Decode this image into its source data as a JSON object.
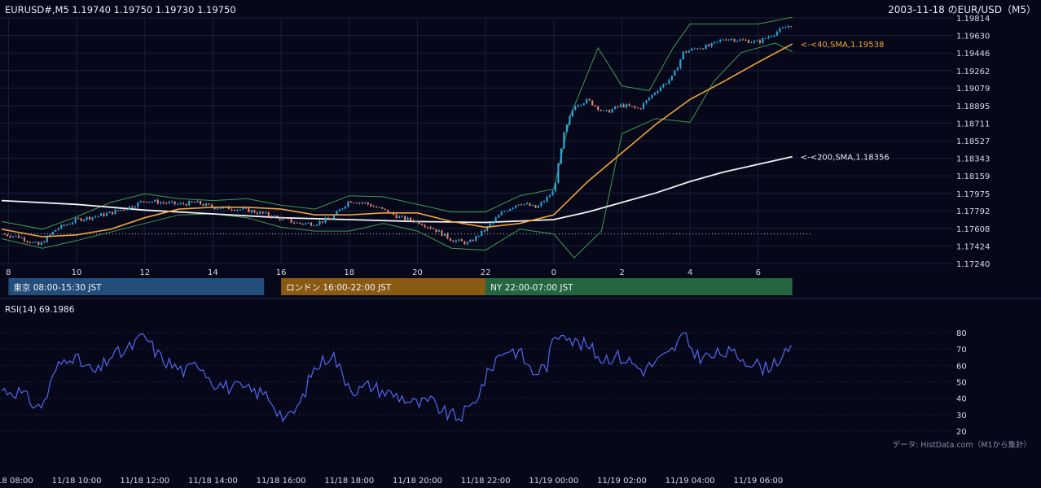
{
  "header": {
    "symbol_ohlc": "EURUSD#,M5 1.19740 1.19750 1.19730 1.19750",
    "title": "2003-11-18 のEUR/USD（M5）"
  },
  "colors": {
    "background": "#06081a",
    "grid": "#1b1e36",
    "bull": "#2aa8e0",
    "bear": "#e8856a",
    "sma40": "#f2a33a",
    "sma200": "#f2f2f2",
    "bollinger": "#3d9a52",
    "rsi": "#5566ee",
    "tokyo": "#234d7a",
    "london": "#8a5a12",
    "ny": "#246640"
  },
  "sessions": [
    {
      "label": "東京 08:00-15:30 JST",
      "start_hour": 8.0,
      "end_hour": 15.5,
      "color": "#234d7a"
    },
    {
      "label": "ロンドン 16:00-22:00 JST",
      "start_hour": 16.0,
      "end_hour": 22.0,
      "color": "#8a5a12"
    },
    {
      "label": "NY 22:00-07:00 JST",
      "start_hour": 22.0,
      "end_hour": 31.0,
      "color": "#246640"
    }
  ],
  "footer_note": "データ: HistData.com（M1から集計）",
  "chart_data": [
    {
      "type": "candlestick",
      "title": "2003-11-18 のEUR/USD（M5）",
      "x_unit": "hours since 2003-11-18 00:00 JST",
      "xlim": [
        7.8,
        31.7
      ],
      "ylim": [
        1.1724,
        1.19814
      ],
      "y_ticks": [
        "1.19814",
        "1.19630",
        "1.19446",
        "1.19262",
        "1.19079",
        "1.18895",
        "1.18711",
        "1.18527",
        "1.18343",
        "1.18159",
        "1.17975",
        "1.17792",
        "1.17608",
        "1.17424",
        "1.17240"
      ],
      "x_ticks": [
        {
          "hour": 8,
          "label": "8"
        },
        {
          "hour": 10,
          "label": "10"
        },
        {
          "hour": 12,
          "label": "12"
        },
        {
          "hour": 14,
          "label": "14"
        },
        {
          "hour": 16,
          "label": "16"
        },
        {
          "hour": 18,
          "label": "18"
        },
        {
          "hour": 20,
          "label": "20"
        },
        {
          "hour": 22,
          "label": "22"
        },
        {
          "hour": 24,
          "label": "0"
        },
        {
          "hour": 26,
          "label": "2"
        },
        {
          "hour": 28,
          "label": "4"
        },
        {
          "hour": 30,
          "label": "6"
        }
      ],
      "close_path": [
        [
          7.8,
          1.1755
        ],
        [
          8.3,
          1.1752
        ],
        [
          8.9,
          1.1743
        ],
        [
          9.4,
          1.176
        ],
        [
          10.0,
          1.177
        ],
        [
          10.5,
          1.1773
        ],
        [
          11.0,
          1.1777
        ],
        [
          11.6,
          1.1784
        ],
        [
          12.0,
          1.179
        ],
        [
          12.5,
          1.1788
        ],
        [
          13.0,
          1.1786
        ],
        [
          13.5,
          1.1788
        ],
        [
          14.0,
          1.1783
        ],
        [
          14.5,
          1.1782
        ],
        [
          15.0,
          1.178
        ],
        [
          15.5,
          1.1776
        ],
        [
          16.0,
          1.1771
        ],
        [
          16.5,
          1.1766
        ],
        [
          17.0,
          1.1766
        ],
        [
          17.5,
          1.1772
        ],
        [
          18.0,
          1.179
        ],
        [
          18.5,
          1.1787
        ],
        [
          19.0,
          1.178
        ],
        [
          19.5,
          1.1772
        ],
        [
          20.0,
          1.1768
        ],
        [
          20.5,
          1.176
        ],
        [
          21.0,
          1.1749
        ],
        [
          21.5,
          1.1745
        ],
        [
          22.0,
          1.176
        ],
        [
          22.5,
          1.1778
        ],
        [
          23.0,
          1.1788
        ],
        [
          23.5,
          1.1782
        ],
        [
          24.0,
          1.18
        ],
        [
          24.3,
          1.186
        ],
        [
          24.6,
          1.189
        ],
        [
          25.0,
          1.1895
        ],
        [
          25.5,
          1.1882
        ],
        [
          26.0,
          1.189
        ],
        [
          26.5,
          1.1886
        ],
        [
          27.0,
          1.1905
        ],
        [
          27.5,
          1.192
        ],
        [
          27.8,
          1.1945
        ],
        [
          28.2,
          1.195
        ],
        [
          28.6,
          1.1952
        ],
        [
          29.0,
          1.196
        ],
        [
          29.5,
          1.1958
        ],
        [
          30.0,
          1.1956
        ],
        [
          30.5,
          1.1966
        ],
        [
          31.0,
          1.1975
        ]
      ],
      "sma40": {
        "label": "<-<40,SMA,1.19538",
        "points": [
          [
            7.8,
            1.176
          ],
          [
            9.0,
            1.1752
          ],
          [
            10.0,
            1.1754
          ],
          [
            11.0,
            1.176
          ],
          [
            12.0,
            1.1772
          ],
          [
            13.0,
            1.1781
          ],
          [
            14.0,
            1.1783
          ],
          [
            15.0,
            1.1783
          ],
          [
            16.0,
            1.1781
          ],
          [
            17.0,
            1.1775
          ],
          [
            18.0,
            1.1775
          ],
          [
            19.0,
            1.1777
          ],
          [
            20.0,
            1.1777
          ],
          [
            21.0,
            1.1768
          ],
          [
            22.0,
            1.1762
          ],
          [
            23.0,
            1.1766
          ],
          [
            24.0,
            1.1775
          ],
          [
            25.0,
            1.181
          ],
          [
            26.0,
            1.184
          ],
          [
            27.0,
            1.187
          ],
          [
            28.0,
            1.1896
          ],
          [
            29.0,
            1.1915
          ],
          [
            30.0,
            1.1935
          ],
          [
            31.0,
            1.1954
          ]
        ]
      },
      "sma200": {
        "label": "<-<200,SMA,1.18356",
        "points": [
          [
            7.8,
            1.179
          ],
          [
            10.0,
            1.1786
          ],
          [
            12.0,
            1.178
          ],
          [
            14.0,
            1.1776
          ],
          [
            16.0,
            1.1772
          ],
          [
            18.0,
            1.177
          ],
          [
            20.0,
            1.1768
          ],
          [
            22.0,
            1.1767
          ],
          [
            24.0,
            1.177
          ],
          [
            25.0,
            1.1778
          ],
          [
            26.0,
            1.1788
          ],
          [
            27.0,
            1.1798
          ],
          [
            28.0,
            1.181
          ],
          [
            29.0,
            1.182
          ],
          [
            30.0,
            1.1828
          ],
          [
            31.0,
            1.1836
          ]
        ]
      },
      "bollinger_upper": [
        [
          7.8,
          1.1768
        ],
        [
          9.0,
          1.176
        ],
        [
          10.0,
          1.1773
        ],
        [
          11.0,
          1.1788
        ],
        [
          12.0,
          1.1797
        ],
        [
          13.0,
          1.1792
        ],
        [
          14.0,
          1.179
        ],
        [
          15.0,
          1.1792
        ],
        [
          16.0,
          1.1785
        ],
        [
          17.0,
          1.1781
        ],
        [
          18.0,
          1.1795
        ],
        [
          19.0,
          1.1794
        ],
        [
          20.0,
          1.1786
        ],
        [
          21.0,
          1.1778
        ],
        [
          22.0,
          1.1778
        ],
        [
          23.0,
          1.1795
        ],
        [
          24.0,
          1.1802
        ],
        [
          24.5,
          1.188
        ],
        [
          25.3,
          1.195
        ],
        [
          26.0,
          1.191
        ],
        [
          26.8,
          1.1905
        ],
        [
          27.5,
          1.195
        ],
        [
          28.0,
          1.1975
        ],
        [
          29.0,
          1.1975
        ],
        [
          30.0,
          1.1975
        ],
        [
          31.0,
          1.1982
        ]
      ],
      "bollinger_lower": [
        [
          7.8,
          1.175
        ],
        [
          9.0,
          1.174
        ],
        [
          10.0,
          1.1748
        ],
        [
          11.0,
          1.1757
        ],
        [
          12.0,
          1.1766
        ],
        [
          13.0,
          1.1775
        ],
        [
          14.0,
          1.1776
        ],
        [
          15.0,
          1.1772
        ],
        [
          16.0,
          1.1762
        ],
        [
          17.0,
          1.1758
        ],
        [
          18.0,
          1.1758
        ],
        [
          19.0,
          1.1766
        ],
        [
          20.0,
          1.1758
        ],
        [
          21.0,
          1.174
        ],
        [
          22.0,
          1.1738
        ],
        [
          23.0,
          1.176
        ],
        [
          24.0,
          1.1755
        ],
        [
          24.6,
          1.173
        ],
        [
          25.4,
          1.1758
        ],
        [
          26.0,
          1.186
        ],
        [
          27.0,
          1.1876
        ],
        [
          28.0,
          1.1872
        ],
        [
          28.7,
          1.1915
        ],
        [
          29.5,
          1.1945
        ],
        [
          30.5,
          1.1955
        ],
        [
          31.0,
          1.1946
        ]
      ],
      "reference_level": 1.1755
    },
    {
      "type": "line",
      "title": "RSI(14) 69.1986",
      "ylim": [
        15,
        88
      ],
      "y_ticks": [
        80,
        70,
        60,
        50,
        40,
        30,
        20
      ],
      "x_tick_labels": [
        {
          "hour": 8,
          "label": "11/18 08:00"
        },
        {
          "hour": 10,
          "label": "11/18 10:00"
        },
        {
          "hour": 12,
          "label": "11/18 12:00"
        },
        {
          "hour": 14,
          "label": "11/18 14:00"
        },
        {
          "hour": 16,
          "label": "11/18 16:00"
        },
        {
          "hour": 18,
          "label": "11/18 18:00"
        },
        {
          "hour": 20,
          "label": "11/18 20:00"
        },
        {
          "hour": 22,
          "label": "11/18 22:00"
        },
        {
          "hour": 24,
          "label": "11/19 00:00"
        },
        {
          "hour": 26,
          "label": "11/19 02:00"
        },
        {
          "hour": 28,
          "label": "11/19 04:00"
        },
        {
          "hour": 30,
          "label": "11/19 06:00"
        }
      ],
      "rsi_path": [
        [
          7.8,
          45
        ],
        [
          8.3,
          44
        ],
        [
          8.9,
          34
        ],
        [
          9.1,
          40
        ],
        [
          9.4,
          58
        ],
        [
          9.8,
          67
        ],
        [
          10.2,
          60
        ],
        [
          10.6,
          55
        ],
        [
          11.0,
          66
        ],
        [
          11.4,
          68
        ],
        [
          11.8,
          75
        ],
        [
          12.0,
          78
        ],
        [
          12.4,
          66
        ],
        [
          12.8,
          60
        ],
        [
          13.2,
          56
        ],
        [
          13.6,
          62
        ],
        [
          14.0,
          50
        ],
        [
          14.4,
          47
        ],
        [
          14.8,
          46
        ],
        [
          15.2,
          44
        ],
        [
          15.6,
          42
        ],
        [
          16.0,
          30
        ],
        [
          16.2,
          27
        ],
        [
          16.6,
          38
        ],
        [
          16.9,
          56
        ],
        [
          17.2,
          62
        ],
        [
          17.5,
          68
        ],
        [
          17.8,
          54
        ],
        [
          18.2,
          44
        ],
        [
          18.6,
          48
        ],
        [
          19.0,
          44
        ],
        [
          19.5,
          41
        ],
        [
          20.0,
          36
        ],
        [
          20.4,
          38
        ],
        [
          20.8,
          31
        ],
        [
          21.2,
          28
        ],
        [
          21.6,
          35
        ],
        [
          22.0,
          52
        ],
        [
          22.3,
          64
        ],
        [
          22.6,
          70
        ],
        [
          23.0,
          68
        ],
        [
          23.4,
          55
        ],
        [
          23.8,
          60
        ],
        [
          24.0,
          76
        ],
        [
          24.3,
          82
        ],
        [
          24.6,
          74
        ],
        [
          25.0,
          72
        ],
        [
          25.4,
          64
        ],
        [
          25.8,
          66
        ],
        [
          26.2,
          63
        ],
        [
          26.6,
          57
        ],
        [
          27.0,
          62
        ],
        [
          27.4,
          67
        ],
        [
          27.8,
          78
        ],
        [
          28.2,
          66
        ],
        [
          28.6,
          65
        ],
        [
          29.0,
          68
        ],
        [
          29.4,
          66
        ],
        [
          29.8,
          62
        ],
        [
          30.2,
          58
        ],
        [
          30.5,
          63
        ],
        [
          30.8,
          66
        ],
        [
          31.0,
          69
        ]
      ]
    }
  ]
}
